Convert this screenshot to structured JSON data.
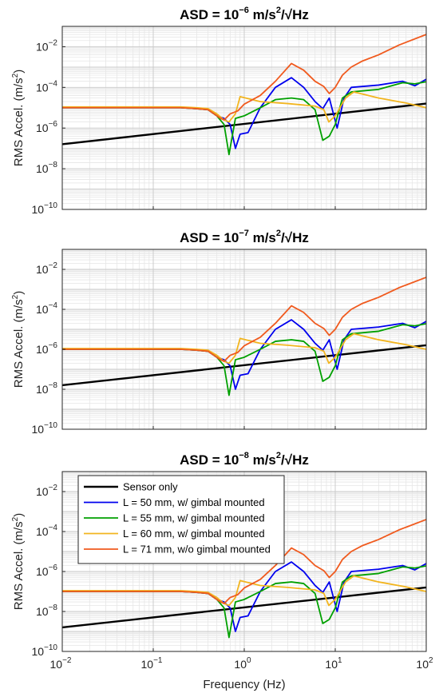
{
  "chart_data": [
    {
      "type": "line",
      "title": "ASD = 10^-6 m/s^2/√Hz",
      "title_parts": {
        "prefix": "ASD  =  10",
        "exp": "−6",
        "mid": "  m/s",
        "sq": "2",
        "suffix": "/√Hz"
      },
      "ylabel": "RMS Accel. (m/s²)",
      "ylabel_parts": {
        "base": "RMS Accel.  (m/s",
        "sup": "2",
        "end": ")"
      },
      "xlabel": "",
      "xscale": "log",
      "yscale": "log",
      "xlim": [
        0.01,
        100
      ],
      "ylim": [
        1e-10,
        0.1
      ],
      "grid": true,
      "series": [
        {
          "x": [
            0.01,
            100
          ],
          "y": [
            1.6e-07,
            1.6e-05
          ]
        },
        {
          "x": [
            0.01,
            0.02,
            0.05,
            0.1,
            0.2,
            0.3,
            0.4,
            0.5,
            0.6,
            0.7,
            0.8,
            0.9,
            1.1,
            1.5,
            2.2,
            3.3,
            4.5,
            6,
            7.3,
            8.6,
            10.5,
            12.5,
            15,
            30,
            55,
            75,
            100
          ],
          "y": [
            1e-05,
            1e-05,
            1e-05,
            1e-05,
            1e-05,
            9e-06,
            8e-06,
            4e-06,
            3e-06,
            1.5e-06,
            1e-07,
            5e-07,
            6e-07,
            1e-05,
            0.0001,
            0.0003,
            0.0001,
            2e-05,
            9e-06,
            3e-05,
            1e-06,
            3e-05,
            0.0001,
            0.00013,
            0.0002,
            0.00012,
            0.00025
          ]
        },
        {
          "x": [
            0.01,
            0.02,
            0.05,
            0.1,
            0.2,
            0.3,
            0.4,
            0.5,
            0.6,
            0.68,
            0.8,
            1.0,
            1.5,
            2.2,
            3.3,
            4.5,
            6,
            7.3,
            8.6,
            10,
            12,
            15,
            30,
            55,
            75,
            100
          ],
          "y": [
            1e-05,
            1e-05,
            1e-05,
            1e-05,
            1e-05,
            9e-06,
            8e-06,
            4e-06,
            1.5e-06,
            5e-08,
            3e-06,
            4e-06,
            1e-05,
            2.5e-05,
            3e-05,
            2.5e-05,
            8e-06,
            2.5e-07,
            4e-07,
            1.5e-06,
            3e-05,
            6e-05,
            8e-05,
            0.00017,
            0.00015,
            0.00019
          ]
        },
        {
          "x": [
            0.01,
            0.02,
            0.05,
            0.1,
            0.2,
            0.3,
            0.4,
            0.5,
            0.6,
            0.68,
            0.8,
            0.9,
            1.5,
            3,
            6,
            7.5,
            8.5,
            10,
            13,
            16,
            30,
            60,
            100
          ],
          "y": [
            1.1e-05,
            1.1e-05,
            1.1e-05,
            1.1e-05,
            1.1e-05,
            1e-05,
            9e-06,
            5e-06,
            2.5e-06,
            2e-06,
            5e-06,
            3.5e-05,
            2e-05,
            1.6e-05,
            1.2e-05,
            8e-06,
            2e-06,
            4e-06,
            3e-05,
            6e-05,
            3e-05,
            1.7e-05,
            1e-05
          ]
        },
        {
          "x": [
            0.01,
            0.02,
            0.05,
            0.1,
            0.2,
            0.3,
            0.4,
            0.5,
            0.55,
            0.6,
            0.7,
            0.85,
            1.0,
            1.5,
            2.2,
            3.3,
            4.5,
            6,
            7.5,
            8.6,
            10,
            12,
            15,
            20,
            30,
            50,
            100
          ],
          "y": [
            1e-05,
            1e-05,
            1e-05,
            1e-05,
            1e-05,
            9e-06,
            8e-06,
            4e-06,
            3e-06,
            2.5e-06,
            5e-06,
            7e-06,
            1.5e-05,
            4e-05,
            0.0002,
            0.0015,
            0.0007,
            0.0002,
            0.00011,
            5e-05,
            0.0001,
            0.0004,
            0.001,
            0.002,
            0.004,
            0.012,
            0.04
          ]
        }
      ]
    },
    {
      "type": "line",
      "title": "ASD = 10^-7 m/s^2/√Hz",
      "title_parts": {
        "prefix": "ASD  =  10",
        "exp": "−7",
        "mid": "  m/s",
        "sq": "2",
        "suffix": "/√Hz"
      },
      "ylabel": "RMS Accel. (m/s²)",
      "ylabel_parts": {
        "base": "RMS Accel.  (m/s",
        "sup": "2",
        "end": ")"
      },
      "xlabel": "",
      "xscale": "log",
      "yscale": "log",
      "xlim": [
        0.01,
        100
      ],
      "ylim": [
        1e-10,
        0.1
      ],
      "grid": true,
      "series": [
        {
          "x": [
            0.01,
            100
          ],
          "y": [
            1.6e-08,
            1.6e-06
          ]
        },
        {
          "x": [
            0.01,
            0.02,
            0.05,
            0.1,
            0.2,
            0.3,
            0.4,
            0.5,
            0.6,
            0.7,
            0.8,
            0.9,
            1.1,
            1.5,
            2.2,
            3.3,
            4.5,
            6,
            7.3,
            8.6,
            10.5,
            12.5,
            15,
            30,
            55,
            75,
            100
          ],
          "y": [
            1e-06,
            1e-06,
            1e-06,
            1e-06,
            1e-06,
            9e-07,
            8e-07,
            4e-07,
            3e-07,
            1.5e-07,
            1e-08,
            5e-08,
            6e-08,
            1e-06,
            1e-05,
            3e-05,
            1e-05,
            2e-06,
            9e-07,
            3e-06,
            1e-07,
            3e-06,
            1e-05,
            1.3e-05,
            2e-05,
            1.2e-05,
            2.5e-05
          ]
        },
        {
          "x": [
            0.01,
            0.02,
            0.05,
            0.1,
            0.2,
            0.3,
            0.4,
            0.5,
            0.6,
            0.68,
            0.8,
            1.0,
            1.5,
            2.2,
            3.3,
            4.5,
            6,
            7.3,
            8.6,
            10,
            12,
            15,
            30,
            55,
            75,
            100
          ],
          "y": [
            1e-06,
            1e-06,
            1e-06,
            1e-06,
            1e-06,
            9e-07,
            8e-07,
            4e-07,
            1.5e-07,
            5e-09,
            3e-07,
            4e-07,
            1e-06,
            2.5e-06,
            3e-06,
            2.5e-06,
            8e-07,
            2.5e-08,
            4e-08,
            1.5e-07,
            3e-06,
            6e-06,
            8e-06,
            1.7e-05,
            1.5e-05,
            1.9e-05
          ]
        },
        {
          "x": [
            0.01,
            0.02,
            0.05,
            0.1,
            0.2,
            0.3,
            0.4,
            0.5,
            0.6,
            0.68,
            0.8,
            0.9,
            1.5,
            3,
            6,
            7.5,
            8.5,
            10,
            13,
            16,
            30,
            60,
            100
          ],
          "y": [
            1.1e-06,
            1.1e-06,
            1.1e-06,
            1.1e-06,
            1.1e-06,
            1e-06,
            9e-07,
            5e-07,
            2.5e-07,
            2e-07,
            5e-07,
            3.5e-06,
            2e-06,
            1.6e-06,
            1.2e-06,
            8e-07,
            2e-07,
            4e-07,
            3e-06,
            6e-06,
            3e-06,
            1.7e-06,
            1e-06
          ]
        },
        {
          "x": [
            0.01,
            0.02,
            0.05,
            0.1,
            0.2,
            0.3,
            0.4,
            0.5,
            0.55,
            0.6,
            0.7,
            0.85,
            1.0,
            1.5,
            2.2,
            3.3,
            4.5,
            6,
            7.5,
            8.6,
            10,
            12,
            15,
            20,
            30,
            50,
            100
          ],
          "y": [
            1e-06,
            1e-06,
            1e-06,
            1e-06,
            1e-06,
            9e-07,
            8e-07,
            4e-07,
            3e-07,
            2.5e-07,
            5e-07,
            7e-07,
            1.5e-06,
            4e-06,
            2e-05,
            0.00015,
            7e-05,
            2e-05,
            1.1e-05,
            5e-06,
            1e-05,
            4e-05,
            0.0001,
            0.0002,
            0.0004,
            0.0012,
            0.004
          ]
        }
      ]
    },
    {
      "type": "line",
      "title": "ASD = 10^-8 m/s^2/√Hz",
      "title_parts": {
        "prefix": "ASD  =  10",
        "exp": "−8",
        "mid": "  m/s",
        "sq": "2",
        "suffix": "/√Hz"
      },
      "ylabel": "RMS Accel. (m/s²)",
      "ylabel_parts": {
        "base": "RMS Accel.  (m/s",
        "sup": "2",
        "end": ")"
      },
      "xlabel": "Frequency (Hz)",
      "xscale": "log",
      "yscale": "log",
      "xlim": [
        0.01,
        100
      ],
      "ylim": [
        1e-10,
        0.1
      ],
      "grid": true,
      "legend": "top-left",
      "series": [
        {
          "name": "Sensor only",
          "x": [
            0.01,
            100
          ],
          "y": [
            1.6e-09,
            1.6e-07
          ]
        },
        {
          "name": "L = 50 mm, w/ gimbal mounted",
          "x": [
            0.01,
            0.02,
            0.05,
            0.1,
            0.2,
            0.3,
            0.4,
            0.5,
            0.6,
            0.7,
            0.8,
            0.9,
            1.1,
            1.5,
            2.2,
            3.3,
            4.5,
            6,
            7.3,
            8.6,
            10.5,
            12.5,
            15,
            30,
            55,
            75,
            100
          ],
          "y": [
            1e-07,
            1e-07,
            1e-07,
            1e-07,
            1e-07,
            9e-08,
            8e-08,
            4e-08,
            3e-08,
            1.5e-08,
            1e-09,
            5e-09,
            6e-09,
            1e-07,
            1e-06,
            3e-06,
            1e-06,
            2e-07,
            9e-08,
            3e-07,
            1e-08,
            3e-07,
            1e-06,
            1.3e-06,
            2e-06,
            1.2e-06,
            2.5e-06
          ]
        },
        {
          "name": "L = 55 mm, w/ gimbal mounted",
          "x": [
            0.01,
            0.02,
            0.05,
            0.1,
            0.2,
            0.3,
            0.4,
            0.5,
            0.6,
            0.68,
            0.8,
            1.0,
            1.5,
            2.2,
            3.3,
            4.5,
            6,
            7.3,
            8.6,
            10,
            12,
            15,
            30,
            55,
            75,
            100
          ],
          "y": [
            1e-07,
            1e-07,
            1e-07,
            1e-07,
            1e-07,
            9e-08,
            8e-08,
            4e-08,
            1.5e-08,
            5e-10,
            3e-08,
            4e-08,
            1e-07,
            2.5e-07,
            3e-07,
            2.5e-07,
            8e-08,
            2.5e-09,
            4e-09,
            1.5e-08,
            3e-07,
            6e-07,
            8e-07,
            1.7e-06,
            1.5e-06,
            1.9e-06
          ]
        },
        {
          "name": "L = 60 mm, w/ gimbal mounted",
          "x": [
            0.01,
            0.02,
            0.05,
            0.1,
            0.2,
            0.3,
            0.4,
            0.5,
            0.6,
            0.68,
            0.8,
            0.9,
            1.5,
            3,
            6,
            7.5,
            8.5,
            10,
            13,
            16,
            30,
            60,
            100
          ],
          "y": [
            1.1e-07,
            1.1e-07,
            1.1e-07,
            1.1e-07,
            1.1e-07,
            1e-07,
            9e-08,
            5e-08,
            2.5e-08,
            2e-08,
            5e-08,
            3.5e-07,
            2e-07,
            1.6e-07,
            1.2e-07,
            8e-08,
            2e-08,
            4e-08,
            3e-07,
            6e-07,
            3e-07,
            1.7e-07,
            1e-07
          ]
        },
        {
          "name": "L = 71 mm, w/o gimbal mounted",
          "x": [
            0.01,
            0.02,
            0.05,
            0.1,
            0.2,
            0.3,
            0.4,
            0.5,
            0.55,
            0.6,
            0.7,
            0.85,
            1.0,
            1.5,
            2.2,
            3.3,
            4.5,
            6,
            7.5,
            8.6,
            10,
            12,
            15,
            20,
            30,
            50,
            100
          ],
          "y": [
            1e-07,
            1e-07,
            1e-07,
            1e-07,
            1e-07,
            9e-08,
            8e-08,
            4e-08,
            3e-08,
            2.5e-08,
            5e-08,
            7e-08,
            1.5e-07,
            4e-07,
            2e-06,
            1.5e-05,
            7e-06,
            2e-06,
            1.1e-06,
            5e-07,
            1e-06,
            4e-06,
            1e-05,
            2e-05,
            4e-05,
            0.00012,
            0.0004
          ]
        }
      ]
    }
  ],
  "style": {
    "colors": [
      "#000000",
      "#0000ee",
      "#00a000",
      "#f2b51f",
      "#f05a1e"
    ],
    "grid_major": "#c8c8c8",
    "grid_minor": "#e6e6e6"
  }
}
